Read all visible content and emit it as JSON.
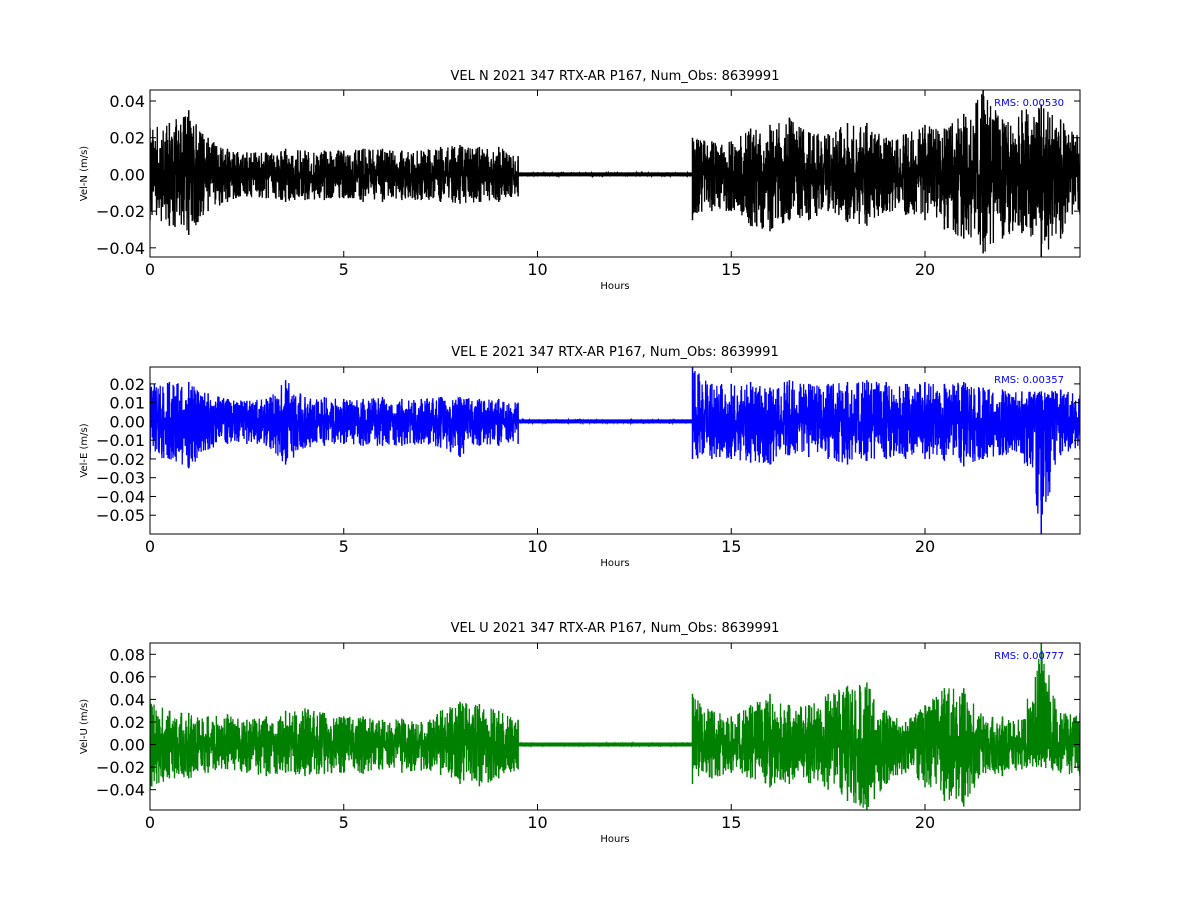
{
  "figure": {
    "background": "#ffffff"
  },
  "chart_data": [
    {
      "type": "line",
      "title": "VEL N 2021 347 RTX-AR  P167, Num_Obs: 8639991",
      "xlabel": "Hours",
      "ylabel": "Vel-N (m/s)",
      "xlim": [
        0,
        24
      ],
      "ylim": [
        -0.045,
        0.046
      ],
      "x_ticks": [
        0,
        5,
        10,
        15,
        20
      ],
      "x_tick_labels": [
        "0",
        "5",
        "10",
        "15",
        "20"
      ],
      "y_ticks": [
        -0.04,
        -0.02,
        0.0,
        0.02,
        0.04
      ],
      "y_tick_labels": [
        "−0.04",
        "−0.02",
        "0.00",
        "0.02",
        "0.04"
      ],
      "grid": false,
      "color": "#000000",
      "rms_label": "RMS:  0.00530",
      "rms_color": "#0000ff",
      "series": [
        {
          "x": [
            0,
            0.5,
            1,
            1.5,
            2,
            2.5,
            3,
            3.5,
            4,
            4.5,
            5,
            5.5,
            6,
            6.5,
            7,
            7.5,
            8,
            8.5,
            9,
            9.5,
            9.5,
            14,
            14,
            14.5,
            15,
            15.5,
            16,
            16.5,
            17,
            17.5,
            18,
            18.5,
            19,
            19.5,
            20,
            20.5,
            21,
            21.5,
            22,
            22.5,
            23,
            23.5,
            24
          ],
          "y_max": [
            0.025,
            0.028,
            0.035,
            0.02,
            0.014,
            0.012,
            0.012,
            0.014,
            0.013,
            0.013,
            0.013,
            0.014,
            0.014,
            0.013,
            0.013,
            0.015,
            0.016,
            0.015,
            0.015,
            0.01,
            0.001,
            0.001,
            0.02,
            0.018,
            0.018,
            0.025,
            0.027,
            0.031,
            0.023,
            0.022,
            0.028,
            0.028,
            0.02,
            0.022,
            0.027,
            0.025,
            0.033,
            0.046,
            0.03,
            0.035,
            0.038,
            0.03,
            0.02
          ],
          "y_min": [
            -0.025,
            -0.028,
            -0.033,
            -0.02,
            -0.015,
            -0.012,
            -0.013,
            -0.015,
            -0.014,
            -0.014,
            -0.013,
            -0.015,
            -0.015,
            -0.014,
            -0.014,
            -0.015,
            -0.016,
            -0.015,
            -0.015,
            -0.012,
            -0.001,
            -0.001,
            -0.025,
            -0.02,
            -0.02,
            -0.028,
            -0.031,
            -0.025,
            -0.025,
            -0.02,
            -0.026,
            -0.028,
            -0.02,
            -0.022,
            -0.025,
            -0.03,
            -0.035,
            -0.043,
            -0.035,
            -0.032,
            -0.045,
            -0.035,
            -0.022
          ]
        }
      ]
    },
    {
      "type": "line",
      "title": "VEL E 2021 347 RTX-AR  P167, Num_Obs: 8639991",
      "xlabel": "Hours",
      "ylabel": "Vel-E (m/s)",
      "xlim": [
        0,
        24
      ],
      "ylim": [
        -0.06,
        0.029
      ],
      "x_ticks": [
        0,
        5,
        10,
        15,
        20
      ],
      "x_tick_labels": [
        "0",
        "5",
        "10",
        "15",
        "20"
      ],
      "y_ticks": [
        -0.05,
        -0.04,
        -0.03,
        -0.02,
        -0.01,
        0.0,
        0.01,
        0.02
      ],
      "y_tick_labels": [
        "−0.05",
        "−0.04",
        "−0.03",
        "−0.02",
        "−0.01",
        "0.00",
        "0.01",
        "0.02"
      ],
      "grid": false,
      "color": "#0000ff",
      "rms_label": "RMS:  0.00357",
      "rms_color": "#0000ff",
      "series": [
        {
          "x": [
            0,
            0.5,
            1,
            1.5,
            2,
            2.5,
            3,
            3.5,
            4,
            4.5,
            5,
            5.5,
            6,
            6.5,
            7,
            7.5,
            8,
            8.5,
            9,
            9.5,
            9.5,
            14,
            14,
            14.5,
            15,
            15.5,
            16,
            16.5,
            17,
            17.5,
            18,
            18.5,
            19,
            19.5,
            20,
            20.5,
            21,
            21.5,
            22,
            22.5,
            23,
            23.5,
            24
          ],
          "y_max": [
            0.02,
            0.021,
            0.021,
            0.015,
            0.012,
            0.011,
            0.012,
            0.022,
            0.013,
            0.013,
            0.012,
            0.012,
            0.013,
            0.012,
            0.012,
            0.013,
            0.013,
            0.012,
            0.012,
            0.01,
            0.001,
            0.001,
            0.029,
            0.02,
            0.02,
            0.021,
            0.018,
            0.022,
            0.02,
            0.02,
            0.021,
            0.022,
            0.021,
            0.02,
            0.021,
            0.02,
            0.021,
            0.018,
            0.017,
            0.016,
            0.016,
            0.017,
            0.014
          ],
          "y_min": [
            -0.02,
            -0.02,
            -0.025,
            -0.015,
            -0.012,
            -0.012,
            -0.013,
            -0.023,
            -0.014,
            -0.013,
            -0.012,
            -0.013,
            -0.013,
            -0.013,
            -0.012,
            -0.014,
            -0.019,
            -0.013,
            -0.013,
            -0.012,
            -0.001,
            -0.001,
            -0.02,
            -0.02,
            -0.02,
            -0.022,
            -0.023,
            -0.018,
            -0.019,
            -0.02,
            -0.023,
            -0.021,
            -0.02,
            -0.02,
            -0.02,
            -0.021,
            -0.024,
            -0.02,
            -0.018,
            -0.017,
            -0.06,
            -0.018,
            -0.015
          ]
        }
      ]
    },
    {
      "type": "line",
      "title": "VEL U 2021 347 RTX-AR  P167, Num_Obs: 8639991",
      "xlabel": "Hours",
      "ylabel": "Vel-U (m/s)",
      "xlim": [
        0,
        24
      ],
      "ylim": [
        -0.058,
        0.09
      ],
      "x_ticks": [
        0,
        5,
        10,
        15,
        20
      ],
      "x_tick_labels": [
        "0",
        "5",
        "10",
        "15",
        "20"
      ],
      "y_ticks": [
        -0.04,
        -0.02,
        0.0,
        0.02,
        0.04,
        0.06,
        0.08
      ],
      "y_tick_labels": [
        "−0.04",
        "−0.02",
        "0.00",
        "0.02",
        "0.04",
        "0.06",
        "0.08"
      ],
      "grid": false,
      "color": "#008000",
      "rms_label": "RMS:  0.00777",
      "rms_color": "#0000ff",
      "series": [
        {
          "x": [
            0,
            0.5,
            1,
            1.5,
            2,
            2.5,
            3,
            3.5,
            4,
            4.5,
            5,
            5.5,
            6,
            6.5,
            7,
            7.5,
            8,
            8.5,
            9,
            9.5,
            9.5,
            14,
            14,
            14.5,
            15,
            15.5,
            16,
            16.5,
            17,
            17.5,
            18,
            18.5,
            19,
            19.5,
            20,
            20.5,
            21,
            21.5,
            22,
            22.5,
            23,
            23.5,
            24
          ],
          "y_max": [
            0.04,
            0.03,
            0.028,
            0.025,
            0.027,
            0.022,
            0.025,
            0.03,
            0.032,
            0.028,
            0.025,
            0.025,
            0.022,
            0.023,
            0.02,
            0.03,
            0.038,
            0.036,
            0.03,
            0.022,
            0.001,
            0.001,
            0.045,
            0.03,
            0.025,
            0.035,
            0.045,
            0.035,
            0.035,
            0.045,
            0.052,
            0.055,
            0.03,
            0.02,
            0.035,
            0.05,
            0.05,
            0.025,
            0.025,
            0.022,
            0.09,
            0.028,
            0.028
          ],
          "y_min": [
            -0.04,
            -0.03,
            -0.03,
            -0.025,
            -0.022,
            -0.025,
            -0.028,
            -0.025,
            -0.028,
            -0.026,
            -0.025,
            -0.026,
            -0.022,
            -0.025,
            -0.023,
            -0.027,
            -0.035,
            -0.037,
            -0.03,
            -0.022,
            -0.001,
            -0.001,
            -0.035,
            -0.03,
            -0.025,
            -0.03,
            -0.038,
            -0.035,
            -0.034,
            -0.04,
            -0.05,
            -0.058,
            -0.035,
            -0.025,
            -0.038,
            -0.05,
            -0.055,
            -0.025,
            -0.028,
            -0.022,
            -0.02,
            -0.025,
            -0.028
          ]
        }
      ]
    }
  ]
}
